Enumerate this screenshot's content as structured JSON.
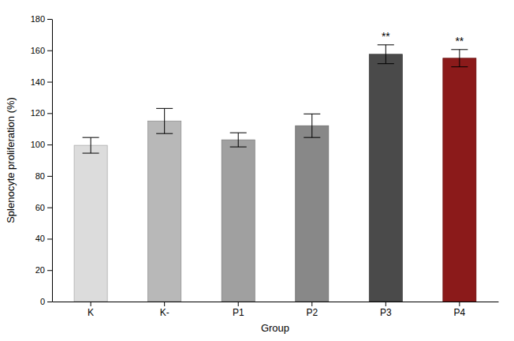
{
  "chart_data": {
    "type": "bar",
    "categories": [
      "K",
      "K-",
      "P1",
      "P2",
      "P3",
      "P4"
    ],
    "values": [
      99.5,
      115.0,
      103.0,
      112.0,
      157.5,
      155.0
    ],
    "errors": [
      5.0,
      8.0,
      4.5,
      7.5,
      6.0,
      5.5
    ],
    "colors": [
      "#dcdcdc",
      "#b8b8b8",
      "#a0a0a0",
      "#888888",
      "#4a4a4a",
      "#8b1a1a"
    ],
    "annotations": [
      null,
      null,
      null,
      null,
      "**",
      "**"
    ],
    "xlabel": "Group",
    "ylabel": "Splenocyte proliferation (%)",
    "ylim": [
      0,
      180
    ],
    "yticks": [
      0,
      20,
      40,
      60,
      80,
      100,
      120,
      140,
      160,
      180
    ],
    "grid": false
  }
}
